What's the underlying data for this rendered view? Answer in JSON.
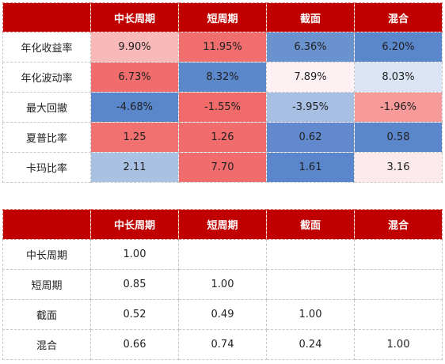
{
  "metrics_table": {
    "corner": "",
    "columns": [
      "中长周期",
      "短周期",
      "截面",
      "混合"
    ],
    "rows": [
      {
        "label": "年化收益率",
        "values": [
          "9.90%",
          "11.95%",
          "6.36%",
          "6.20%"
        ],
        "colors": [
          "#f9b9b9",
          "#f16e6e",
          "#6a92cf",
          "#5a86cb"
        ]
      },
      {
        "label": "年化波动率",
        "values": [
          "6.73%",
          "8.32%",
          "7.89%",
          "8.03%"
        ],
        "colors": [
          "#f16c6c",
          "#5b87cb",
          "#fdf1f3",
          "#dae4f4"
        ]
      },
      {
        "label": "最大回撤",
        "values": [
          "-4.68%",
          "-1.55%",
          "-3.95%",
          "-1.96%"
        ],
        "colors": [
          "#5a86cb",
          "#f16b6b",
          "#a6bfe3",
          "#f69a9a"
        ]
      },
      {
        "label": "夏普比率",
        "values": [
          "1.25",
          "1.26",
          "0.62",
          "0.58"
        ],
        "colors": [
          "#f17070",
          "#f16c6c",
          "#6289cd",
          "#5a86cb"
        ]
      },
      {
        "label": "卡玛比率",
        "values": [
          "2.11",
          "7.70",
          "1.61",
          "3.16"
        ],
        "colors": [
          "#a9c2e3",
          "#f16c6c",
          "#5a86cb",
          "#fbe9ec"
        ]
      }
    ]
  },
  "correlation_table": {
    "corner": "",
    "columns": [
      "中长周期",
      "短周期",
      "截面",
      "混合"
    ],
    "rows": [
      {
        "label": "中长周期",
        "values": [
          "1.00",
          "",
          "",
          ""
        ]
      },
      {
        "label": "短周期",
        "values": [
          "0.85",
          "1.00",
          "",
          ""
        ]
      },
      {
        "label": "截面",
        "values": [
          "0.52",
          "0.49",
          "1.00",
          ""
        ]
      },
      {
        "label": "混合",
        "values": [
          "0.66",
          "0.74",
          "0.24",
          "1.00"
        ]
      }
    ]
  },
  "colors": {
    "header_bg": "#c00000",
    "header_text": "#ffffff"
  }
}
